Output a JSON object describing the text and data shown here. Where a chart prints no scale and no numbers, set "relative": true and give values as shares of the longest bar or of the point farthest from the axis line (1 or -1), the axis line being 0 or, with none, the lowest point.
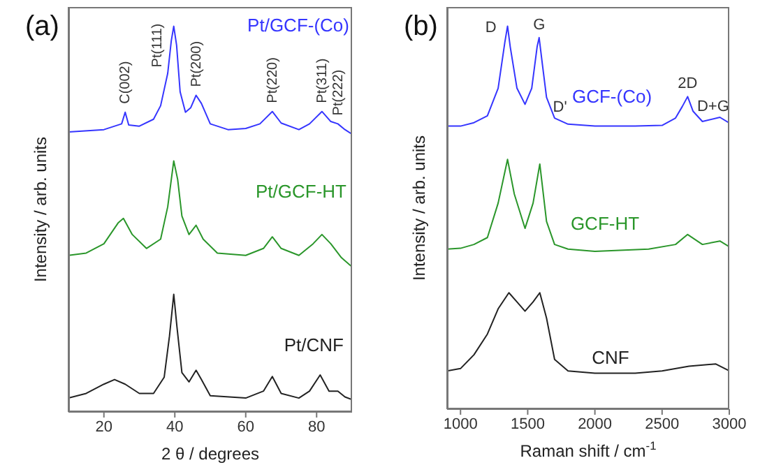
{
  "chart_data": [
    {
      "type": "line",
      "title": "(a)",
      "xlabel": "2 θ / degrees",
      "ylabel": "Intensity / arb. units",
      "relative": true,
      "xlim": [
        10,
        90
      ],
      "xticks": [
        20,
        40,
        60,
        80
      ],
      "legend": false,
      "grid": false,
      "marker": "none",
      "annotations": [
        {
          "text": "C(002)",
          "x": 26,
          "y": 0.777
        },
        {
          "text": "Pt(111)",
          "x": 39.7,
          "y": 1.0
        },
        {
          "text": "Pt(200)",
          "x": 46,
          "y": 0.821
        },
        {
          "text": "Pt(220)",
          "x": 67.5,
          "y": 0.779
        },
        {
          "text": "Pt(311)",
          "x": 81.5,
          "y": 0.779
        },
        {
          "text": "Pt(222)",
          "x": 86,
          "y": 0.747
        }
      ],
      "series": [
        {
          "name": "Pt/GCF-(Co)",
          "color": "#3535ff",
          "x": [
            10,
            20,
            25,
            26,
            27,
            30,
            34,
            36,
            38,
            39,
            39.7,
            40.5,
            41.5,
            43,
            44.5,
            46,
            47.5,
            50,
            55,
            60,
            64,
            67.5,
            70,
            75,
            78,
            81.5,
            84,
            86,
            88,
            90
          ],
          "values": [
            0.726,
            0.732,
            0.747,
            0.777,
            0.744,
            0.741,
            0.759,
            0.794,
            0.878,
            0.962,
            1.0,
            0.951,
            0.83,
            0.777,
            0.789,
            0.821,
            0.8,
            0.747,
            0.732,
            0.735,
            0.747,
            0.779,
            0.749,
            0.732,
            0.747,
            0.779,
            0.753,
            0.747,
            0.732,
            0.72
          ]
        },
        {
          "name": "Pt/GCF-HT",
          "color": "#2a962a",
          "x": [
            10,
            15,
            20,
            24,
            25.5,
            28,
            32,
            36,
            38,
            39.7,
            40.8,
            42,
            44,
            46,
            48,
            52,
            60,
            65,
            67.5,
            70,
            75,
            79,
            81.5,
            84,
            87,
            90
          ],
          "values": [
            0.406,
            0.412,
            0.436,
            0.49,
            0.502,
            0.46,
            0.424,
            0.448,
            0.532,
            0.651,
            0.603,
            0.508,
            0.46,
            0.484,
            0.448,
            0.412,
            0.406,
            0.424,
            0.454,
            0.424,
            0.406,
            0.436,
            0.46,
            0.436,
            0.4,
            0.376
          ]
        },
        {
          "name": "Pt/CNF",
          "color": "#222222",
          "x": [
            10,
            15,
            20,
            23,
            26,
            30,
            34,
            37,
            38.5,
            39.7,
            40.6,
            42,
            44,
            46,
            47.5,
            50,
            60,
            65,
            67.5,
            70,
            75,
            78,
            81,
            83.5,
            86,
            88,
            90
          ],
          "values": [
            0.036,
            0.048,
            0.072,
            0.084,
            0.072,
            0.048,
            0.048,
            0.09,
            0.197,
            0.305,
            0.221,
            0.102,
            0.078,
            0.108,
            0.084,
            0.042,
            0.036,
            0.054,
            0.092,
            0.048,
            0.036,
            0.054,
            0.096,
            0.054,
            0.054,
            0.039,
            0.032
          ]
        }
      ]
    },
    {
      "type": "line",
      "title": "(b)",
      "xlabel": "Raman shift / cm$^{-1}$",
      "ylabel": "Intensity / arb. units",
      "relative": true,
      "xlim": [
        900,
        3000
      ],
      "xticks": [
        1000,
        1500,
        2000,
        2500,
        3000
      ],
      "legend": false,
      "grid": false,
      "marker": "none",
      "annotations": [
        {
          "text": "D",
          "x": 1350,
          "y": 1.0
        },
        {
          "text": "G",
          "x": 1585,
          "y": 0.97
        },
        {
          "text": "D'",
          "x": 1740,
          "y": 0.754
        },
        {
          "text": "2D",
          "x": 2690,
          "y": 0.816
        },
        {
          "text": "D+G",
          "x": 2880,
          "y": 0.756
        }
      ],
      "series": [
        {
          "name": "GCF-(Co)",
          "color": "#3535ff",
          "x": [
            900,
            1000,
            1100,
            1200,
            1280,
            1330,
            1350,
            1370,
            1420,
            1480,
            1530,
            1570,
            1585,
            1610,
            1640,
            1700,
            1800,
            2000,
            2300,
            2500,
            2600,
            2650,
            2690,
            2730,
            2800,
            2930,
            3000
          ],
          "values": [
            0.739,
            0.739,
            0.748,
            0.766,
            0.838,
            0.958,
            1.0,
            0.946,
            0.838,
            0.796,
            0.838,
            0.946,
            0.97,
            0.898,
            0.814,
            0.76,
            0.744,
            0.739,
            0.739,
            0.741,
            0.76,
            0.79,
            0.816,
            0.778,
            0.751,
            0.762,
            0.747
          ]
        },
        {
          "name": "GCF-HT",
          "color": "#2a962a",
          "x": [
            900,
            1000,
            1100,
            1200,
            1280,
            1350,
            1400,
            1480,
            1540,
            1590,
            1640,
            1700,
            1800,
            2000,
            2400,
            2600,
            2690,
            2800,
            2930,
            3000
          ],
          "values": [
            0.418,
            0.42,
            0.43,
            0.448,
            0.538,
            0.652,
            0.562,
            0.472,
            0.538,
            0.64,
            0.49,
            0.43,
            0.418,
            0.412,
            0.418,
            0.43,
            0.456,
            0.43,
            0.439,
            0.424
          ]
        },
        {
          "name": "CNF",
          "color": "#222222",
          "x": [
            900,
            1000,
            1100,
            1200,
            1280,
            1360,
            1420,
            1480,
            1540,
            1590,
            1640,
            1700,
            1800,
            2000,
            2300,
            2500,
            2700,
            2900,
            3000
          ],
          "values": [
            0.1,
            0.106,
            0.142,
            0.196,
            0.262,
            0.304,
            0.28,
            0.256,
            0.28,
            0.304,
            0.238,
            0.13,
            0.1,
            0.094,
            0.094,
            0.1,
            0.112,
            0.118,
            0.1
          ]
        }
      ]
    }
  ]
}
